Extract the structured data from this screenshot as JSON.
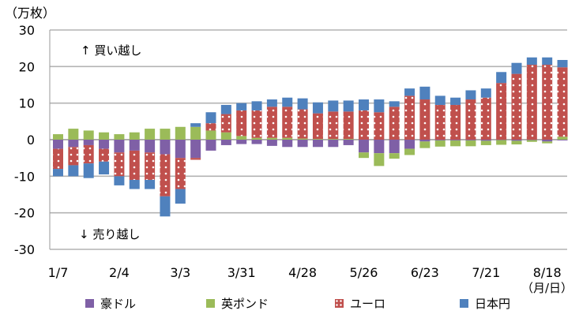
{
  "chart_data": {
    "type": "bar",
    "stacked": true,
    "unit_label": "（万枚）",
    "unit_x_label": "（月/日）",
    "annotation_buy": "↑ 買い越し",
    "annotation_sell": "↓ 売り越し",
    "ylim": [
      -30,
      30
    ],
    "yticks": [
      30,
      20,
      10,
      0,
      -10,
      -20,
      -30
    ],
    "xticks": [
      "1/7",
      "2/4",
      "3/3",
      "3/31",
      "4/28",
      "5/26",
      "6/23",
      "7/21",
      "8/18"
    ],
    "xtick_index": [
      0,
      4,
      8,
      12,
      16,
      20,
      24,
      28,
      32
    ],
    "grid": true,
    "legend_position": "bottom",
    "series": [
      {
        "name": "豪ドル",
        "color": "#7F60A6",
        "values": [
          -2.5,
          -2,
          -1.5,
          -2.5,
          -3.5,
          -3,
          -3.5,
          -4,
          -5,
          -5,
          -3,
          -1.5,
          -1.2,
          -1.2,
          -1.7,
          -2,
          -2,
          -2,
          -2,
          -1.5,
          -3.5,
          -3.7,
          -3.7,
          -2.5,
          -0.5,
          -0.2,
          -0.2,
          -0.2,
          -0.3,
          -0.1,
          -0.3,
          -0.1,
          -0.5,
          -0.2
        ]
      },
      {
        "name": "英ポンド",
        "color": "#9BBB59",
        "values": [
          1.5,
          3,
          2.5,
          2,
          1.5,
          2,
          3,
          3,
          3.5,
          3.5,
          2.5,
          2,
          1,
          0.5,
          0.5,
          0.5,
          0.3,
          0.2,
          0.2,
          0.2,
          -1.5,
          -3.5,
          -1.5,
          -1.7,
          -1.8,
          -1.7,
          -1.6,
          -1.6,
          -1.2,
          -1.3,
          -1,
          -0.5,
          -0.5,
          0.8
        ]
      },
      {
        "name": "ユーロ",
        "color": "#C0504D",
        "values": [
          -5.5,
          -5,
          -5,
          -3.5,
          -6.5,
          -8,
          -7.5,
          -11.5,
          -8.5,
          -0.5,
          2,
          5,
          7,
          7.5,
          8.5,
          8.5,
          8,
          7,
          7.5,
          7.5,
          8,
          7.5,
          9,
          12,
          11,
          9.5,
          9.5,
          11,
          11.5,
          15.5,
          18,
          20.5,
          20.5,
          19
        ]
      },
      {
        "name": "日本円",
        "color": "#4F81BD",
        "values": [
          -2,
          -3,
          -4,
          -3.5,
          -2.5,
          -2.5,
          -2.5,
          -5.5,
          -4,
          1,
          3,
          2.5,
          2,
          2.5,
          2,
          2.5,
          3,
          3,
          3,
          3,
          3,
          3.5,
          1.5,
          2,
          3.5,
          2.5,
          2,
          2.5,
          2.5,
          3,
          3,
          2,
          2,
          2
        ]
      }
    ]
  }
}
